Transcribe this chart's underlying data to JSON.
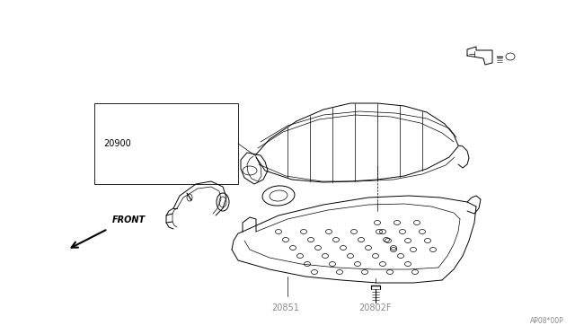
{
  "background_color": "#ffffff",
  "line_color": "#000000",
  "gray_color": "#888888",
  "fig_width": 6.4,
  "fig_height": 3.72,
  "dpi": 100,
  "label_20900": "20900",
  "label_20851": "20851",
  "label_20802F": "20802F",
  "label_front": "FRONT",
  "diagram_code": "AP08*00P",
  "label_fontsize": 7,
  "small_fontsize": 5.5
}
